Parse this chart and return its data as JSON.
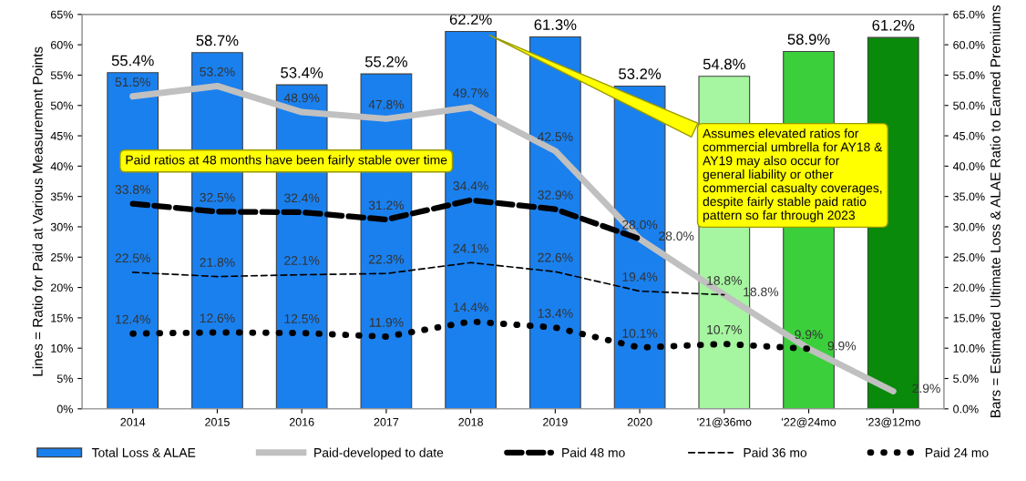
{
  "chart_data": {
    "type": "bar",
    "categories": [
      "2014",
      "2015",
      "2016",
      "2017",
      "2018",
      "2019",
      "2020",
      "'21@36mo",
      "'22@24mo",
      "'23@12mo"
    ],
    "ylabel": "Lines = Ratio for Paid at Various Measurement Points",
    "y2label": "Bars = Estimated Ultimate Loss & ALAE Ratio to Earned Premiums",
    "ylim": [
      0,
      65
    ],
    "yticks": [
      {
        "value": 0,
        "label": "0%"
      },
      {
        "value": 5,
        "label": "5%"
      },
      {
        "value": 10,
        "label": "10%"
      },
      {
        "value": 15,
        "label": "15%"
      },
      {
        "value": 20,
        "label": "20%"
      },
      {
        "value": 25,
        "label": "25%"
      },
      {
        "value": 30,
        "label": "30%"
      },
      {
        "value": 35,
        "label": "35%"
      },
      {
        "value": 40,
        "label": "40%"
      },
      {
        "value": 45,
        "label": "45%"
      },
      {
        "value": 50,
        "label": "50%"
      },
      {
        "value": 55,
        "label": "55%"
      },
      {
        "value": 60,
        "label": "60%"
      },
      {
        "value": 65,
        "label": "65%"
      }
    ],
    "y2lim": [
      0,
      65
    ],
    "y2ticks": [
      {
        "value": 0,
        "label": "0.0%"
      },
      {
        "value": 5,
        "label": "5.0%"
      },
      {
        "value": 10,
        "label": "10.0%"
      },
      {
        "value": 15,
        "label": "15.0%"
      },
      {
        "value": 20,
        "label": "20.0%"
      },
      {
        "value": 25,
        "label": "25.0%"
      },
      {
        "value": 30,
        "label": "30.0%"
      },
      {
        "value": 35,
        "label": "35.0%"
      },
      {
        "value": 40,
        "label": "40.0%"
      },
      {
        "value": 45,
        "label": "45.0%"
      },
      {
        "value": 50,
        "label": "50.0%"
      },
      {
        "value": 55,
        "label": "55.0%"
      },
      {
        "value": 60,
        "label": "60.0%"
      },
      {
        "value": 65,
        "label": "65.0%"
      }
    ],
    "series": [
      {
        "name": "Total Loss & ALAE",
        "axis": "y2",
        "color": "#1a80ee",
        "colors": [
          "#1a80ee",
          "#1a80ee",
          "#1a80ee",
          "#1a80ee",
          "#1a80ee",
          "#1a80ee",
          "#1a80ee",
          "#a6f5a0",
          "#3ccf3c",
          "#0a8a0a"
        ],
        "values": [
          55.4,
          58.7,
          53.4,
          55.2,
          62.2,
          61.3,
          53.2,
          54.8,
          58.9,
          61.2
        ],
        "value_labels": [
          "55.4%",
          "58.7%",
          "53.4%",
          "55.2%",
          "62.2%",
          "61.3%",
          "53.2%",
          "54.8%",
          "58.9%",
          "61.2%"
        ]
      },
      {
        "name": "Paid-developed to date",
        "type": "line",
        "color": "#c0c0c0",
        "line_style": "solid",
        "values": [
          51.5,
          53.2,
          48.9,
          47.8,
          49.7,
          42.5,
          28.0,
          18.8,
          9.9,
          2.9
        ],
        "value_labels": [
          "51.5%",
          "53.2%",
          "48.9%",
          "47.8%",
          "49.7%",
          "42.5%",
          "28.0%",
          "18.8%",
          "9.9%",
          "2.9%"
        ]
      },
      {
        "name": "Paid 48 mo",
        "type": "line",
        "color": "#000000",
        "line_style": "dashed",
        "values": [
          33.8,
          32.5,
          32.4,
          31.2,
          34.4,
          32.9,
          28.0,
          null,
          null,
          null
        ],
        "value_labels": [
          "33.8%",
          "32.5%",
          "32.4%",
          "31.2%",
          "34.4%",
          "32.9%",
          "28.0%",
          null,
          null,
          null
        ]
      },
      {
        "name": "Paid 36 mo",
        "type": "line",
        "color": "#000000",
        "line_style": "dashed",
        "values": [
          22.5,
          21.8,
          22.1,
          22.3,
          24.1,
          22.6,
          19.4,
          18.8,
          null,
          null
        ],
        "value_labels": [
          "22.5%",
          "21.8%",
          "22.1%",
          "22.3%",
          "24.1%",
          "22.6%",
          "19.4%",
          "18.8%",
          null,
          null
        ]
      },
      {
        "name": "Paid 24 mo",
        "type": "line",
        "color": "#000000",
        "line_style": "dotted",
        "values": [
          12.4,
          12.6,
          12.5,
          11.9,
          14.4,
          13.4,
          10.1,
          10.7,
          9.9,
          null
        ],
        "value_labels": [
          "12.4%",
          "12.6%",
          "12.5%",
          "11.9%",
          "14.4%",
          "13.4%",
          "10.1%",
          "10.7%",
          "9.9%",
          null
        ]
      }
    ],
    "annotations": [
      "Paid ratios at 48 months have been fairly stable over time",
      "Assumes elevated ratios for\ncommercial umbrella for AY18 &\nAY19 may also occur for\ngeneral liability or other\ncommercial casualty coverages,\ndespite fairly stable paid ratio\npattern so far through 2023"
    ],
    "legend": "bottom",
    "grid": false
  }
}
